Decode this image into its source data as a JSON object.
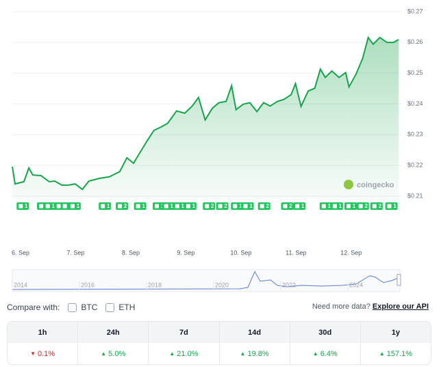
{
  "chart_data": {
    "type": "line",
    "x": [
      5.85,
      5.9,
      6.06,
      6.15,
      6.22,
      6.37,
      6.52,
      6.62,
      6.75,
      6.87,
      6.99,
      7.12,
      7.24,
      7.43,
      7.61,
      7.8,
      7.93,
      8.05,
      8.17,
      8.3,
      8.42,
      8.55,
      8.67,
      8.83,
      8.98,
      9.11,
      9.23,
      9.35,
      9.48,
      9.6,
      9.73,
      9.83,
      9.91,
      10.04,
      10.16,
      10.29,
      10.41,
      10.53,
      10.66,
      10.78,
      10.91,
      10.99,
      11.09,
      11.22,
      11.34,
      11.44,
      11.53,
      11.65,
      11.78,
      11.9,
      11.96,
      12.09,
      12.21,
      12.31,
      12.4,
      12.52,
      12.65,
      12.77,
      12.86
    ],
    "series": [
      {
        "color": "#16a34a",
        "values": [
          0.2196,
          0.214,
          0.2147,
          0.2192,
          0.2169,
          0.2167,
          0.2147,
          0.2149,
          0.2136,
          0.2136,
          0.214,
          0.2122,
          0.2149,
          0.2158,
          0.2163,
          0.218,
          0.2225,
          0.2207,
          0.2243,
          0.2281,
          0.2314,
          0.2325,
          0.2337,
          0.2377,
          0.237,
          0.2392,
          0.2421,
          0.2348,
          0.2386,
          0.2404,
          0.2408,
          0.2459,
          0.2381,
          0.2399,
          0.2404,
          0.2375,
          0.2404,
          0.2393,
          0.2408,
          0.2415,
          0.243,
          0.2466,
          0.2392,
          0.2442,
          0.2451,
          0.2513,
          0.2486,
          0.2507,
          0.2486,
          0.2502,
          0.2455,
          0.2497,
          0.2549,
          0.2616,
          0.2594,
          0.2616,
          0.26,
          0.26,
          0.2609
        ]
      }
    ],
    "xlim": [
      5.85,
      12.86
    ],
    "xticks": [
      {
        "value": 6,
        "label": "6. Sep"
      },
      {
        "value": 7,
        "label": "7. Sep"
      },
      {
        "value": 8,
        "label": "8. Sep"
      },
      {
        "value": 9,
        "label": "9. Sep"
      },
      {
        "value": 10,
        "label": "10. Sep"
      },
      {
        "value": 11,
        "label": "11. Sep"
      },
      {
        "value": 12,
        "label": "12. Sep"
      }
    ],
    "ylim": [
      0.21,
      0.27
    ],
    "yticks": [
      {
        "value": 0.21,
        "label": "$0.21"
      },
      {
        "value": 0.22,
        "label": "$0.22"
      },
      {
        "value": 0.23,
        "label": "$0.23"
      },
      {
        "value": 0.24,
        "label": "$0.24"
      },
      {
        "value": 0.25,
        "label": "$0.25"
      },
      {
        "value": 0.26,
        "label": "$0.26"
      },
      {
        "value": 0.27,
        "label": "$0.27"
      }
    ],
    "grid": true,
    "watermark": "coingecko",
    "annotations": [
      {
        "x": 6.04,
        "label": "1"
      },
      {
        "x": 6.41,
        "label": "1"
      },
      {
        "x": 6.53,
        "label": "1"
      },
      {
        "x": 6.73,
        "label": "1"
      },
      {
        "x": 6.84,
        "label": "1"
      },
      {
        "x": 6.98,
        "label": "1"
      },
      {
        "x": 7.53,
        "label": "1"
      },
      {
        "x": 7.84,
        "label": "2"
      },
      {
        "x": 8.17,
        "label": "1"
      },
      {
        "x": 8.51,
        "label": "1"
      },
      {
        "x": 8.68,
        "label": "1"
      },
      {
        "x": 8.88,
        "label": "1"
      },
      {
        "x": 9.08,
        "label": "1"
      },
      {
        "x": 9.42,
        "label": "2"
      },
      {
        "x": 9.66,
        "label": "2"
      },
      {
        "x": 9.93,
        "label": "1"
      },
      {
        "x": 10.12,
        "label": "1"
      },
      {
        "x": 10.42,
        "label": "2"
      },
      {
        "x": 10.84,
        "label": "2"
      },
      {
        "x": 11.06,
        "label": "1"
      },
      {
        "x": 11.54,
        "label": "1"
      },
      {
        "x": 11.74,
        "label": "1"
      },
      {
        "x": 11.99,
        "label": "1"
      },
      {
        "x": 12.21,
        "label": "2"
      },
      {
        "x": 12.46,
        "label": "2"
      },
      {
        "x": 12.73,
        "label": "1"
      }
    ],
    "navigator_labels": [
      "2014",
      "2016",
      "2018",
      "2020",
      "2022",
      "2024"
    ]
  },
  "compare": {
    "label": "Compare with:",
    "options": [
      "BTC",
      "ETH"
    ]
  },
  "api": {
    "prompt": "Need more data?",
    "link": "Explore our API"
  },
  "table": {
    "headers": [
      "1h",
      "24h",
      "7d",
      "14d",
      "30d",
      "1y"
    ],
    "cells": [
      {
        "text": "0.1%",
        "direction": "down"
      },
      {
        "text": "5.0%",
        "direction": "up"
      },
      {
        "text": "21.0%",
        "direction": "up"
      },
      {
        "text": "19.8%",
        "direction": "up"
      },
      {
        "text": "6.4%",
        "direction": "up"
      },
      {
        "text": "157.1%",
        "direction": "up"
      }
    ]
  }
}
